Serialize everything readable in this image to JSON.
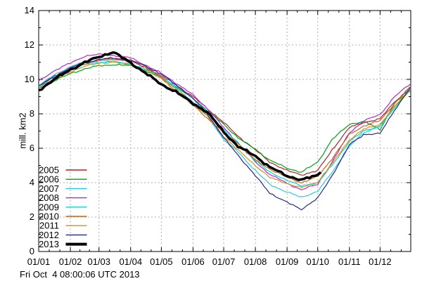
{
  "chart_data": {
    "type": "line",
    "title": "",
    "xlabel": "",
    "ylabel": "mill. km2",
    "footer_timestamp": "Fri Oct  4 08:00:06 UTC 2013",
    "ylim": [
      0,
      14
    ],
    "y_ticks": [
      0,
      2,
      4,
      6,
      8,
      10,
      12,
      14
    ],
    "y_minor_ticks": [
      1,
      3,
      5,
      7,
      9,
      11,
      13
    ],
    "x_tick_labels": [
      "01/01",
      "01/02",
      "01/03",
      "01/04",
      "01/05",
      "01/06",
      "01/07",
      "01/08",
      "01/09",
      "01/10",
      "01/11",
      "01/12"
    ],
    "x_tick_days": [
      1,
      32,
      60,
      91,
      121,
      152,
      182,
      213,
      244,
      274,
      305,
      335
    ],
    "xlim_days": [
      1,
      365
    ],
    "grid": {
      "show": true,
      "style": "dashed",
      "color": "#b0b0b0"
    },
    "legend_position": "inside-lower-left",
    "sample_days": [
      1,
      16,
      32,
      46,
      60,
      74,
      91,
      105,
      121,
      135,
      152,
      166,
      182,
      196,
      213,
      227,
      244,
      258,
      274,
      288,
      305,
      319,
      335,
      349,
      365
    ],
    "series": [
      {
        "name": "2005",
        "color": "#b22222",
        "width": 1.2,
        "values": [
          9.6,
          10.2,
          10.7,
          11.0,
          11.15,
          11.2,
          11.05,
          10.7,
          10.2,
          9.7,
          9.0,
          8.3,
          7.5,
          6.7,
          5.9,
          5.2,
          4.7,
          4.45,
          4.7,
          5.9,
          7.2,
          7.5,
          7.7,
          8.7,
          9.5
        ]
      },
      {
        "name": "2006",
        "color": "#00a020",
        "width": 1.2,
        "values": [
          9.5,
          9.9,
          10.35,
          10.6,
          10.8,
          10.85,
          10.8,
          10.5,
          10.1,
          9.55,
          8.9,
          8.2,
          7.4,
          6.6,
          5.95,
          5.3,
          4.85,
          4.6,
          5.2,
          6.5,
          7.4,
          7.55,
          7.1,
          8.6,
          9.35
        ]
      },
      {
        "name": "2007",
        "color": "#2ec8e8",
        "width": 1.2,
        "values": [
          9.65,
          10.25,
          10.75,
          11.0,
          11.1,
          11.05,
          10.9,
          10.55,
          10.1,
          9.5,
          8.7,
          7.9,
          6.5,
          5.8,
          4.7,
          3.9,
          3.45,
          3.15,
          3.5,
          4.6,
          6.1,
          6.9,
          7.3,
          8.4,
          9.55
        ]
      },
      {
        "name": "2008",
        "color": "#b428c8",
        "width": 1.2,
        "values": [
          9.9,
          10.5,
          10.95,
          11.35,
          11.45,
          11.4,
          11.25,
          10.85,
          10.35,
          9.8,
          9.1,
          8.3,
          7.2,
          6.3,
          5.2,
          4.5,
          3.95,
          3.6,
          3.9,
          5.2,
          6.9,
          7.6,
          7.95,
          9.0,
          9.75
        ]
      },
      {
        "name": "2009",
        "color": "#00d8d8",
        "width": 1.2,
        "values": [
          9.6,
          10.1,
          10.55,
          10.85,
          11.0,
          11.0,
          10.9,
          10.6,
          10.15,
          9.6,
          8.9,
          8.1,
          7.1,
          6.3,
          5.3,
          4.6,
          4.15,
          3.8,
          4.0,
          5.0,
          6.4,
          7.0,
          7.3,
          8.3,
          9.5
        ]
      },
      {
        "name": "2010",
        "color": "#c86414",
        "width": 1.2,
        "values": [
          9.5,
          10.05,
          10.55,
          10.9,
          11.1,
          11.2,
          11.1,
          10.8,
          10.1,
          9.3,
          8.5,
          7.75,
          6.9,
          6.3,
          5.3,
          4.8,
          4.3,
          4.0,
          4.35,
          5.4,
          6.8,
          7.3,
          7.6,
          8.6,
          9.6
        ]
      },
      {
        "name": "2011",
        "color": "#d2911e",
        "width": 1.2,
        "values": [
          9.35,
          9.95,
          10.45,
          10.75,
          10.95,
          11.0,
          10.85,
          10.55,
          10.05,
          9.45,
          8.65,
          7.85,
          6.7,
          5.9,
          5.0,
          4.3,
          3.95,
          3.7,
          4.05,
          5.1,
          6.5,
          7.1,
          7.4,
          8.4,
          9.5
        ]
      },
      {
        "name": "2012",
        "color": "#28288c",
        "width": 1.2,
        "values": [
          9.6,
          10.15,
          10.65,
          10.95,
          11.15,
          11.25,
          11.1,
          10.8,
          10.3,
          9.7,
          8.9,
          8.0,
          6.6,
          5.6,
          4.4,
          3.4,
          2.85,
          2.45,
          3.1,
          4.4,
          6.2,
          6.8,
          6.85,
          8.2,
          9.55
        ]
      },
      {
        "name": "2013",
        "color": "#000000",
        "width": 3.5,
        "days": [
          1,
          16,
          32,
          46,
          60,
          74,
          91,
          105,
          121,
          135,
          152,
          166,
          182,
          196,
          213,
          227,
          244,
          258,
          274,
          277
        ],
        "values": [
          9.35,
          10.0,
          10.55,
          11.0,
          11.3,
          11.6,
          10.95,
          10.4,
          9.7,
          9.3,
          8.6,
          8.1,
          6.95,
          6.1,
          5.55,
          4.9,
          4.4,
          4.15,
          4.45,
          4.6
        ]
      }
    ]
  }
}
